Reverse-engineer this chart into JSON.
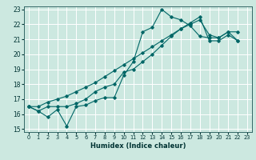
{
  "xlabel": "Humidex (Indice chaleur)",
  "ylabel": "",
  "bg_color": "#cce8e0",
  "grid_color": "#ffffff",
  "line_color": "#006666",
  "xlim": [
    -0.5,
    23.5
  ],
  "ylim": [
    14.8,
    23.2
  ],
  "yticks": [
    15,
    16,
    17,
    18,
    19,
    20,
    21,
    22,
    23
  ],
  "xticks": [
    0,
    1,
    2,
    3,
    4,
    5,
    6,
    7,
    8,
    9,
    10,
    11,
    12,
    13,
    14,
    15,
    16,
    17,
    18,
    19,
    20,
    21,
    22,
    23
  ],
  "series": [
    [
      16.5,
      16.2,
      15.8,
      16.3,
      15.2,
      16.5,
      16.6,
      16.9,
      17.1,
      17.1,
      18.6,
      19.5,
      21.5,
      21.8,
      23.0,
      22.5,
      22.3,
      21.9,
      21.2,
      21.1,
      21.1,
      21.5,
      20.9,
      null
    ],
    [
      16.5,
      16.2,
      16.5,
      16.5,
      16.5,
      16.7,
      17.0,
      17.5,
      17.8,
      18.0,
      18.8,
      19.0,
      19.5,
      20.0,
      20.6,
      21.2,
      21.7,
      22.0,
      22.3,
      21.3,
      21.1,
      21.5,
      21.5,
      null
    ],
    [
      16.5,
      16.5,
      16.8,
      17.0,
      17.2,
      17.5,
      17.8,
      18.1,
      18.5,
      18.9,
      19.3,
      19.7,
      20.1,
      20.5,
      20.9,
      21.3,
      21.7,
      22.1,
      22.5,
      20.9,
      20.9,
      21.3,
      20.9,
      null
    ]
  ]
}
